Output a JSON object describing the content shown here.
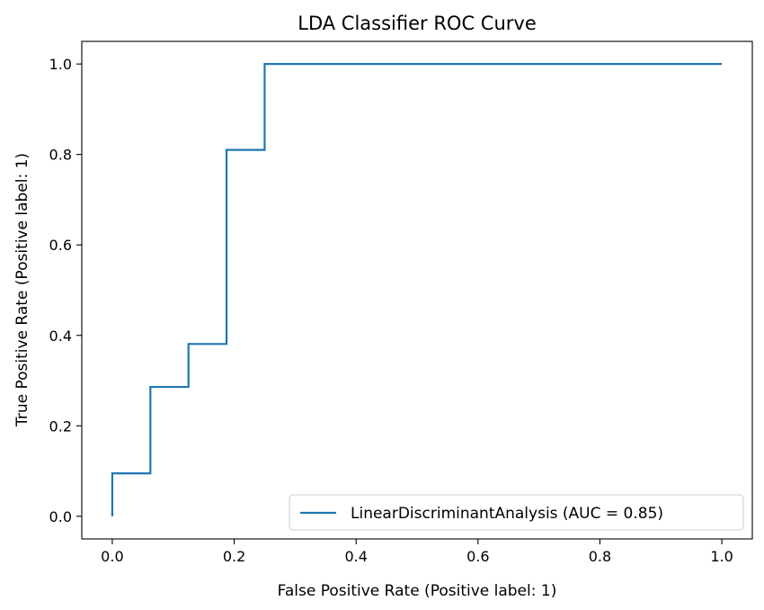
{
  "chart_data": {
    "type": "line",
    "title": "LDA Classifier ROC Curve",
    "xlabel": "False Positive Rate (Positive label: 1)",
    "ylabel": "True Positive Rate (Positive label: 1)",
    "xlim": [
      -0.05,
      1.05
    ],
    "ylim": [
      -0.05,
      1.05
    ],
    "x_ticks": [
      "0.0",
      "0.2",
      "0.4",
      "0.6",
      "0.8",
      "1.0"
    ],
    "y_ticks": [
      "0.0",
      "0.2",
      "0.4",
      "0.6",
      "0.8",
      "1.0"
    ],
    "grid": false,
    "legend_position": "lower-right",
    "series": [
      {
        "name": "LinearDiscriminantAnalysis (AUC = 0.85)",
        "color": "#1f77b4",
        "x": [
          0.0,
          0.0,
          0.0625,
          0.0625,
          0.125,
          0.125,
          0.1875,
          0.1875,
          0.25,
          0.25,
          1.0
        ],
        "y": [
          0.0,
          0.095,
          0.095,
          0.286,
          0.286,
          0.381,
          0.381,
          0.81,
          0.81,
          1.0,
          1.0
        ]
      }
    ]
  }
}
